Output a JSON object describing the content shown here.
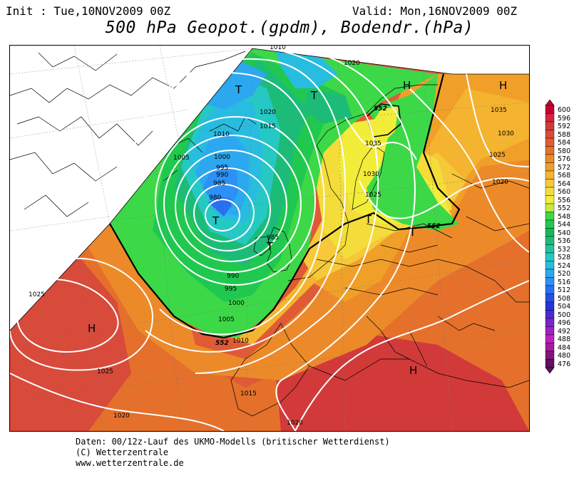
{
  "header": {
    "init": "Init : Tue,10NOV2009 00Z",
    "valid": "Valid: Mon,16NOV2009 00Z",
    "title": "500 hPa Geopot.(gpdm), Bodendr.(hPa)"
  },
  "pressure_systems": [
    {
      "type": "T"
    },
    {
      "type": "T"
    },
    {
      "type": "T"
    },
    {
      "type": "T"
    },
    {
      "type": "T"
    },
    {
      "type": "T"
    },
    {
      "type": "H"
    },
    {
      "type": "H"
    },
    {
      "type": "H"
    },
    {
      "type": "H"
    }
  ],
  "isobar_labels": [
    "1010",
    "1020",
    "1020",
    "1015",
    "1010",
    "1005",
    "1000",
    "995",
    "990",
    "985",
    "980",
    "985",
    "990",
    "995",
    "1000",
    "1005",
    "1010",
    "1015",
    "1025",
    "1025",
    "1020",
    "1020",
    "1025",
    "1030",
    "1035",
    "1035",
    "1030",
    "1025",
    "1020"
  ],
  "geopotential_labels": [
    "552",
    "552",
    "552"
  ],
  "scale": {
    "values": [
      "600",
      "596",
      "592",
      "588",
      "584",
      "580",
      "576",
      "572",
      "568",
      "564",
      "560",
      "556",
      "552",
      "548",
      "544",
      "540",
      "536",
      "532",
      "528",
      "524",
      "520",
      "516",
      "512",
      "508",
      "504",
      "500",
      "496",
      "492",
      "488",
      "484",
      "480",
      "476"
    ],
    "colors": [
      "#c80032",
      "#dc2040",
      "#d23a3a",
      "#d84a3a",
      "#e05a36",
      "#e4702c",
      "#ec8a2a",
      "#f0a028",
      "#f4b430",
      "#f6c83a",
      "#f4dc3a",
      "#f2ec3a",
      "#c8e83c",
      "#3cd848",
      "#20c850",
      "#18b858",
      "#1cbc78",
      "#22c4a0",
      "#26c8c4",
      "#28bce0",
      "#2ca8f0",
      "#2c90f4",
      "#2870f0",
      "#2450e8",
      "#2436d8",
      "#4a2ad0",
      "#7a24cc",
      "#a020c8",
      "#c020c0",
      "#a81a9e",
      "#80167c",
      "#60105c"
    ]
  },
  "credits": {
    "line1": "Daten: 00/12z-Lauf des UKMO-Modells (britischer Wetterdienst)",
    "line2": "(C) Wetterzentrale",
    "line3": "www.wetterzentrale.de"
  }
}
